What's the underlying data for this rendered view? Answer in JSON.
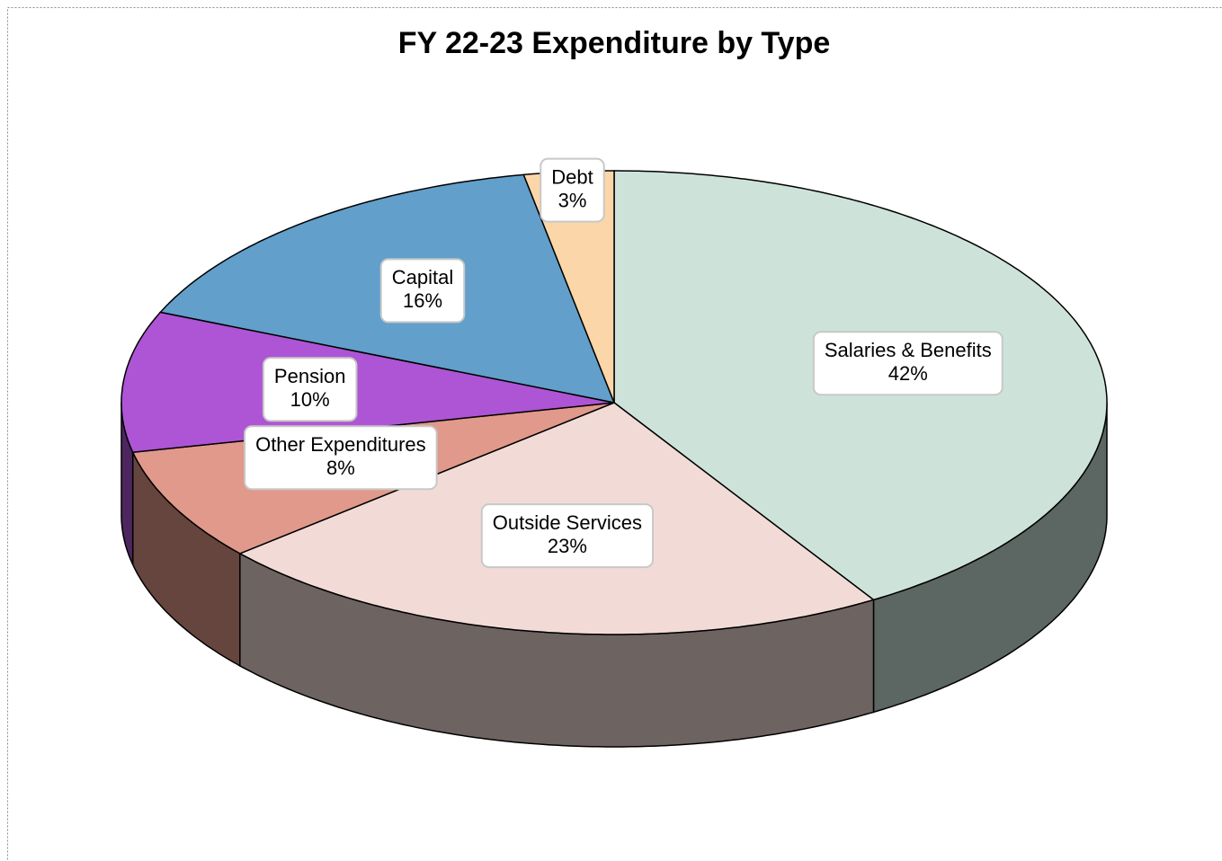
{
  "chart_data": {
    "type": "pie3d",
    "title": "FY 22-23 Expenditure by Type",
    "categories": [
      "Salaries & Benefits",
      "Outside Services",
      "Other Expenditures",
      "Pension",
      "Capital",
      "Debt"
    ],
    "values": [
      42,
      23,
      8,
      10,
      16,
      3
    ],
    "value_labels": [
      "42%",
      "23%",
      "8%",
      "10%",
      "16%",
      "3%"
    ],
    "colors": [
      "#cde3da",
      "#f2dbd7",
      "#e0998a",
      "#ad55d4",
      "#629fcb",
      "#fbd6a8"
    ]
  }
}
